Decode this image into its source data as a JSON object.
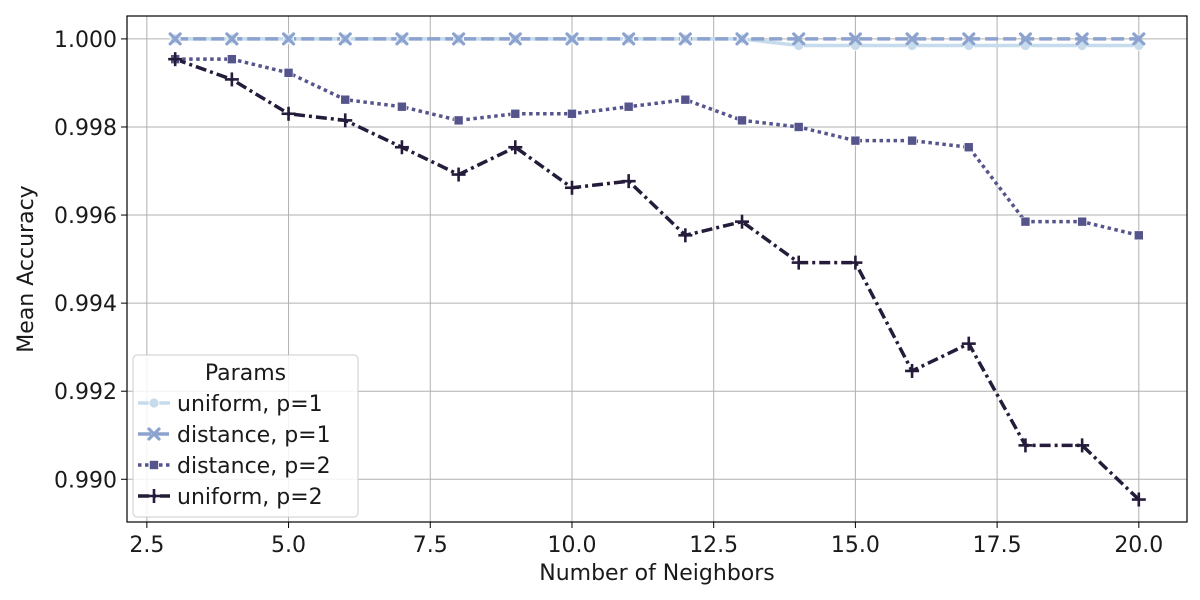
{
  "chart_data": {
    "type": "line",
    "title": "",
    "xlabel": "Number of Neighbors",
    "ylabel": "Mean Accuracy",
    "xlim": [
      2.15,
      20.85
    ],
    "ylim": [
      0.98903,
      1.00052
    ],
    "xticks": [
      2.5,
      5.0,
      7.5,
      10.0,
      12.5,
      15.0,
      17.5,
      20.0
    ],
    "xtick_labels": [
      "2.5",
      "5.0",
      "7.5",
      "10.0",
      "12.5",
      "15.0",
      "17.5",
      "20.0"
    ],
    "yticks": [
      0.99,
      0.992,
      0.994,
      0.996,
      0.998,
      1.0
    ],
    "ytick_labels": [
      "0.990",
      "0.992",
      "0.994",
      "0.996",
      "0.998",
      "1.000"
    ],
    "grid": true,
    "legend": {
      "title": "Params",
      "position": "lower-left"
    },
    "x": [
      3,
      4,
      5,
      6,
      7,
      8,
      9,
      10,
      11,
      12,
      13,
      14,
      15,
      16,
      17,
      18,
      19,
      20
    ],
    "series": [
      {
        "name": "uniform, p=1",
        "color": "#c6dbec",
        "dash": "solid",
        "marker": "circle",
        "values": [
          1.0,
          1.0,
          1.0,
          1.0,
          1.0,
          1.0,
          1.0,
          1.0,
          1.0,
          1.0,
          1.0,
          0.99985,
          0.99985,
          0.99985,
          0.99985,
          0.99985,
          0.99985,
          0.99985
        ]
      },
      {
        "name": "distance, p=1",
        "color": "#8da3cf",
        "dash": "dashed",
        "marker": "x",
        "values": [
          1.0,
          1.0,
          1.0,
          1.0,
          1.0,
          1.0,
          1.0,
          1.0,
          1.0,
          1.0,
          1.0,
          1.0,
          1.0,
          1.0,
          1.0,
          1.0,
          1.0,
          1.0
        ]
      },
      {
        "name": "distance, p=2",
        "color": "#55558c",
        "dash": "dotted",
        "marker": "square",
        "values": [
          0.99954,
          0.99954,
          0.99923,
          0.99862,
          0.99846,
          0.99815,
          0.9983,
          0.9983,
          0.99846,
          0.99862,
          0.99815,
          0.998,
          0.99769,
          0.99769,
          0.99754,
          0.99585,
          0.99585,
          0.99554
        ]
      },
      {
        "name": "uniform, p=2",
        "color": "#241c3a",
        "dash": "dashdot",
        "marker": "plus",
        "values": [
          0.99954,
          0.99908,
          0.9983,
          0.99815,
          0.99754,
          0.99692,
          0.99754,
          0.99662,
          0.99677,
          0.99554,
          0.99585,
          0.99492,
          0.99492,
          0.99246,
          0.99308,
          0.99077,
          0.99077,
          0.98954
        ]
      }
    ]
  }
}
